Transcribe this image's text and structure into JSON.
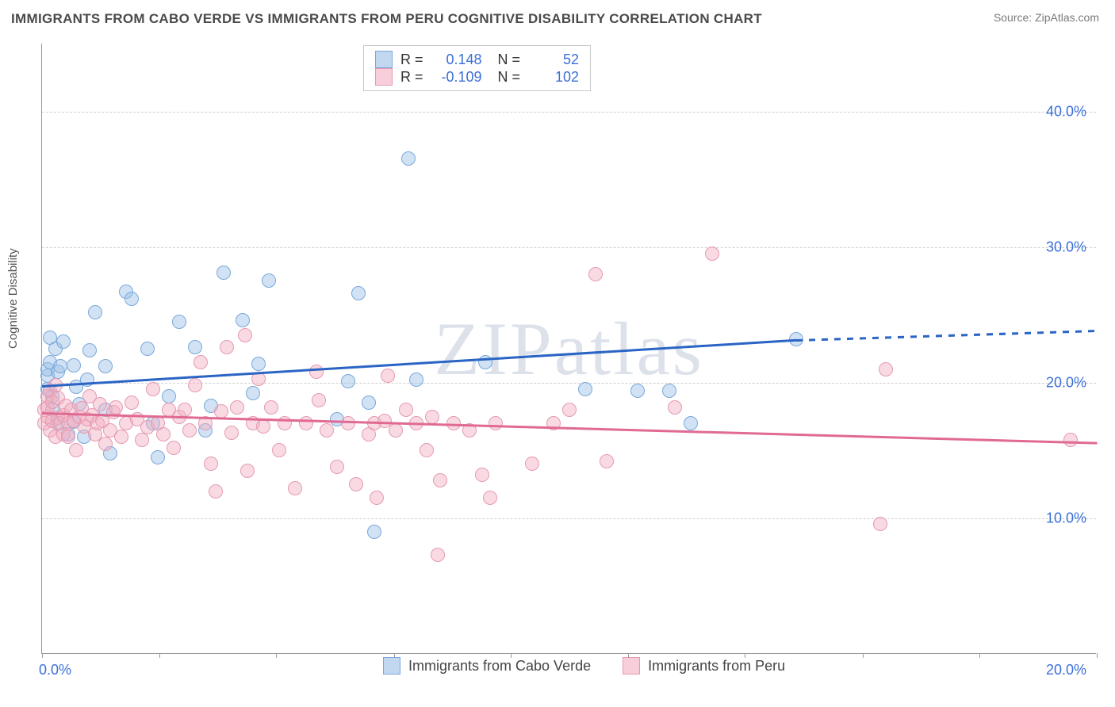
{
  "header": {
    "title": "IMMIGRANTS FROM CABO VERDE VS IMMIGRANTS FROM PERU COGNITIVE DISABILITY CORRELATION CHART",
    "source_prefix": "Source: ",
    "source_name": "ZipAtlas.com"
  },
  "chart": {
    "type": "scatter",
    "watermark": "ZIPatlas",
    "background_color": "#ffffff",
    "grid_color": "#d0d0d0",
    "axis_color": "#999999",
    "y_axis_label": "Cognitive Disability",
    "xlim": [
      0,
      20
    ],
    "ylim": [
      0,
      45
    ],
    "x_ticks": [
      0,
      2.22,
      4.44,
      6.67,
      8.89,
      11.11,
      13.33,
      15.56,
      17.78,
      20
    ],
    "x_tick_labels": {
      "0": "0.0%",
      "20": "20.0%"
    },
    "y_ticks": [
      10,
      20,
      30,
      40
    ],
    "y_tick_labels": [
      "10.0%",
      "20.0%",
      "30.0%",
      "40.0%"
    ],
    "tick_label_color": "#3a6fd8",
    "tick_fontsize": 18,
    "series": [
      {
        "key": "a",
        "name": "Immigrants from Cabo Verde",
        "fill": "rgba(154,190,231,0.45)",
        "stroke": "#7aa8db",
        "line_color": "#2a64c4",
        "marker_radius": 9,
        "r": "0.148",
        "n": "52",
        "regression": {
          "x0": 0,
          "y0": 19.8,
          "x1": 14.3,
          "y1": 23.2,
          "dash_from_x": 14.3,
          "dash_to_x": 20,
          "dash_y1": 23.9
        },
        "points": [
          [
            0.1,
            19.5
          ],
          [
            0.1,
            20.5
          ],
          [
            0.1,
            21.0
          ],
          [
            0.15,
            21.5
          ],
          [
            0.15,
            23.3
          ],
          [
            0.2,
            18.0
          ],
          [
            0.2,
            19.0
          ],
          [
            0.25,
            22.5
          ],
          [
            0.3,
            17.0
          ],
          [
            0.3,
            20.8
          ],
          [
            0.35,
            21.2
          ],
          [
            0.4,
            23.0
          ],
          [
            0.5,
            16.2
          ],
          [
            0.6,
            17.1
          ],
          [
            0.6,
            21.3
          ],
          [
            0.65,
            19.7
          ],
          [
            0.7,
            18.4
          ],
          [
            0.8,
            16.0
          ],
          [
            0.85,
            20.2
          ],
          [
            0.9,
            22.4
          ],
          [
            1.0,
            25.2
          ],
          [
            1.2,
            21.2
          ],
          [
            1.2,
            18.0
          ],
          [
            1.3,
            14.8
          ],
          [
            1.6,
            26.7
          ],
          [
            1.7,
            26.2
          ],
          [
            2.0,
            22.5
          ],
          [
            2.1,
            17.0
          ],
          [
            2.2,
            14.5
          ],
          [
            2.4,
            19.0
          ],
          [
            2.6,
            24.5
          ],
          [
            2.9,
            22.6
          ],
          [
            3.1,
            16.5
          ],
          [
            3.2,
            18.3
          ],
          [
            3.45,
            28.1
          ],
          [
            3.8,
            24.6
          ],
          [
            4.0,
            19.2
          ],
          [
            4.1,
            21.4
          ],
          [
            4.3,
            27.5
          ],
          [
            5.6,
            17.3
          ],
          [
            5.8,
            20.1
          ],
          [
            6.0,
            26.6
          ],
          [
            6.2,
            18.5
          ],
          [
            6.3,
            9.0
          ],
          [
            6.95,
            36.5
          ],
          [
            7.1,
            20.2
          ],
          [
            8.4,
            21.5
          ],
          [
            10.3,
            19.5
          ],
          [
            11.3,
            19.4
          ],
          [
            11.9,
            19.4
          ],
          [
            12.3,
            17.0
          ],
          [
            14.3,
            23.2
          ]
        ]
      },
      {
        "key": "b",
        "name": "Immigrants from Peru",
        "fill": "rgba(242,174,192,0.45)",
        "stroke": "#e59ab0",
        "line_color": "#e06a92",
        "marker_radius": 9,
        "r": "-0.109",
        "n": "102",
        "regression": {
          "x0": 0,
          "y0": 17.8,
          "x1": 20,
          "y1": 15.6
        },
        "points": [
          [
            0.05,
            17.0
          ],
          [
            0.05,
            18.0
          ],
          [
            0.1,
            17.5
          ],
          [
            0.1,
            18.2
          ],
          [
            0.1,
            19.0
          ],
          [
            0.15,
            16.5
          ],
          [
            0.15,
            19.4
          ],
          [
            0.2,
            17.2
          ],
          [
            0.2,
            18.6
          ],
          [
            0.25,
            16.0
          ],
          [
            0.25,
            19.8
          ],
          [
            0.3,
            17.4
          ],
          [
            0.3,
            18.9
          ],
          [
            0.35,
            17.0
          ],
          [
            0.4,
            16.2
          ],
          [
            0.4,
            17.6
          ],
          [
            0.45,
            18.3
          ],
          [
            0.5,
            17.0
          ],
          [
            0.5,
            16.0
          ],
          [
            0.55,
            18.0
          ],
          [
            0.6,
            17.2
          ],
          [
            0.65,
            15.0
          ],
          [
            0.7,
            17.5
          ],
          [
            0.75,
            18.1
          ],
          [
            0.8,
            16.8
          ],
          [
            0.85,
            17.3
          ],
          [
            0.9,
            19.0
          ],
          [
            0.95,
            17.6
          ],
          [
            1.0,
            16.2
          ],
          [
            1.05,
            17.0
          ],
          [
            1.1,
            18.4
          ],
          [
            1.15,
            17.2
          ],
          [
            1.2,
            15.5
          ],
          [
            1.3,
            16.5
          ],
          [
            1.35,
            17.8
          ],
          [
            1.4,
            18.2
          ],
          [
            1.5,
            16.0
          ],
          [
            1.6,
            17.0
          ],
          [
            1.7,
            18.5
          ],
          [
            1.8,
            17.3
          ],
          [
            1.9,
            15.8
          ],
          [
            2.0,
            16.7
          ],
          [
            2.1,
            19.5
          ],
          [
            2.2,
            17.0
          ],
          [
            2.3,
            16.2
          ],
          [
            2.4,
            18.0
          ],
          [
            2.5,
            15.2
          ],
          [
            2.6,
            17.5
          ],
          [
            2.7,
            18.0
          ],
          [
            2.8,
            16.5
          ],
          [
            2.9,
            19.8
          ],
          [
            3.0,
            21.5
          ],
          [
            3.1,
            17.0
          ],
          [
            3.2,
            14.0
          ],
          [
            3.3,
            12.0
          ],
          [
            3.4,
            17.9
          ],
          [
            3.5,
            22.6
          ],
          [
            3.6,
            16.3
          ],
          [
            3.7,
            18.2
          ],
          [
            3.85,
            23.5
          ],
          [
            3.9,
            13.5
          ],
          [
            4.0,
            17.0
          ],
          [
            4.1,
            20.3
          ],
          [
            4.2,
            16.8
          ],
          [
            4.35,
            18.2
          ],
          [
            4.5,
            15.0
          ],
          [
            4.6,
            17.0
          ],
          [
            4.8,
            12.2
          ],
          [
            5.0,
            17.0
          ],
          [
            5.2,
            20.8
          ],
          [
            5.25,
            18.7
          ],
          [
            5.4,
            16.5
          ],
          [
            5.6,
            13.8
          ],
          [
            5.8,
            17.0
          ],
          [
            5.95,
            12.5
          ],
          [
            6.2,
            16.2
          ],
          [
            6.3,
            17.0
          ],
          [
            6.35,
            11.5
          ],
          [
            6.5,
            17.2
          ],
          [
            6.55,
            20.5
          ],
          [
            6.7,
            16.5
          ],
          [
            6.9,
            18.0
          ],
          [
            7.1,
            17.0
          ],
          [
            7.3,
            15.0
          ],
          [
            7.4,
            17.5
          ],
          [
            7.5,
            7.3
          ],
          [
            7.55,
            12.8
          ],
          [
            7.8,
            17.0
          ],
          [
            8.1,
            16.5
          ],
          [
            8.35,
            13.2
          ],
          [
            8.5,
            11.5
          ],
          [
            8.6,
            17.0
          ],
          [
            9.3,
            14.0
          ],
          [
            9.7,
            17.0
          ],
          [
            10.0,
            18.0
          ],
          [
            10.5,
            28.0
          ],
          [
            10.7,
            14.2
          ],
          [
            12.0,
            18.2
          ],
          [
            12.7,
            29.5
          ],
          [
            15.9,
            9.6
          ],
          [
            16.0,
            21.0
          ],
          [
            19.5,
            15.8
          ]
        ]
      }
    ]
  }
}
